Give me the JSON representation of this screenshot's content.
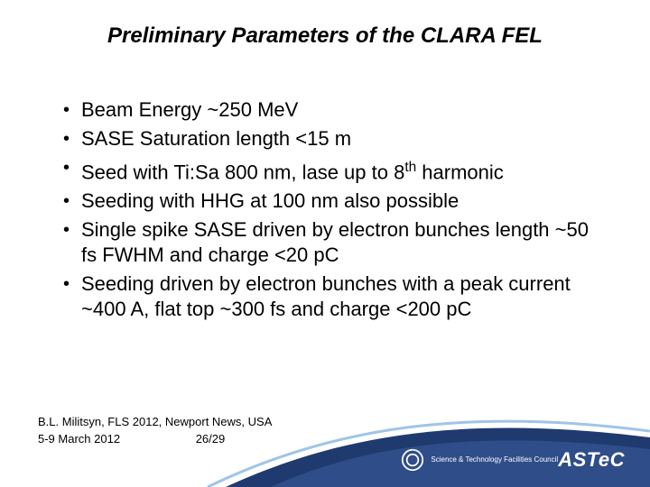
{
  "title": {
    "text": "Preliminary Parameters of the CLARA FEL",
    "fontsize": 24,
    "color": "#000000",
    "style": "italic bold"
  },
  "bullets": [
    {
      "text": "Beam Energy ~250 MeV"
    },
    {
      "text": "SASE Saturation length <15 m"
    },
    {
      "html": "Seed with Ti:Sa 800 nm, lase up to 8<sup>th</sup> harmonic"
    },
    {
      "text": "Seeding with HHG at 100 nm also possible"
    },
    {
      "text": "Single spike SASE driven by electron bunches length ~50 fs FWHM and charge <20 pC"
    },
    {
      "text": "Seeding driven by electron bunches with a peak current ~400 A, flat top ~300 fs and charge <200 pC"
    }
  ],
  "bullet_style": {
    "marker": "•",
    "fontsize": 22,
    "line_height": 28,
    "color": "#000000"
  },
  "footer": {
    "line1": "B.L. Militsyn, FLS 2012, Newport News, USA",
    "line2_left": "5-9 March 2012",
    "page": "26/29",
    "fontsize": 13
  },
  "swoosh": {
    "top_stroke_color": "#9fc5e8",
    "fill_color": "#1f3a6e",
    "highlight_color": "#3a5a9a"
  },
  "branding": {
    "astec_text": "ASTeC",
    "astec_color": "#ffffff",
    "stfc_line1": "Science & Technology Facilities Council",
    "stfc_line2": "",
    "stfc_color": "#ffffff",
    "stfc_logo_colors": [
      "#ffffff",
      "#e0e8f5"
    ]
  },
  "background_color": "#ffffff"
}
